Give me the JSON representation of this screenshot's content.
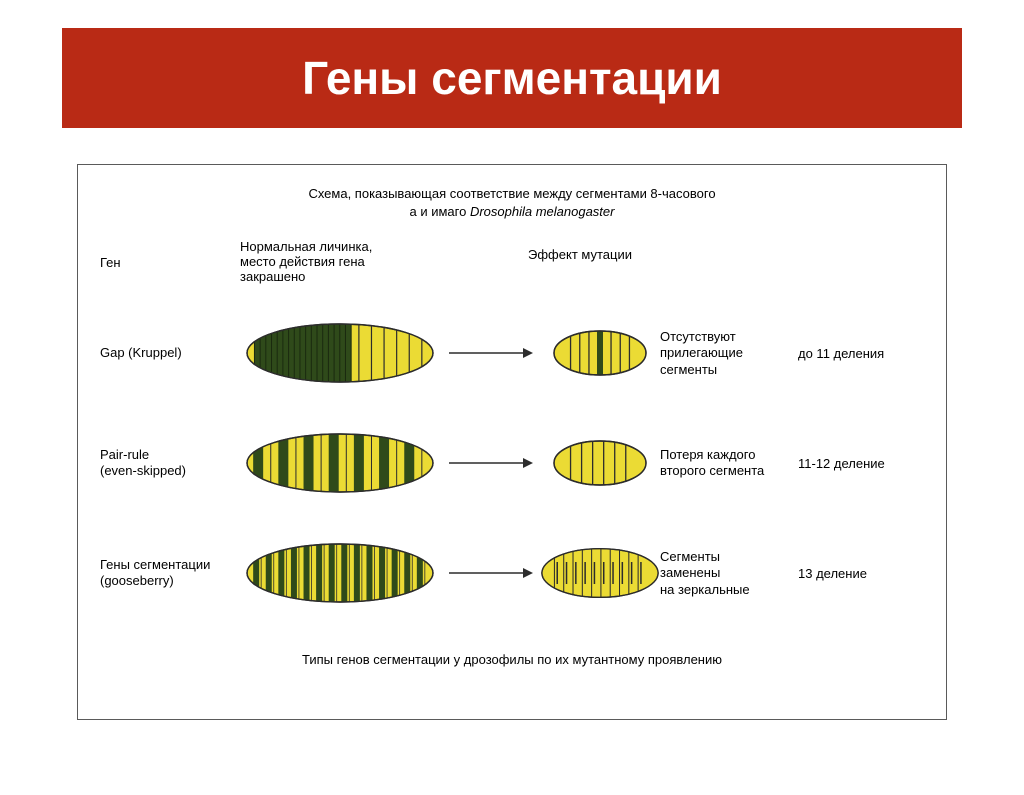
{
  "title": "Гены сегментации",
  "title_bg": "#b92a15",
  "title_fg": "#ffffff",
  "title_border": "#b92a15",
  "frame_border": "#5a5a5a",
  "caption_top_l1": "Схема, показывающая соответствие между сегментами 8-часового",
  "caption_top_l2_a": "а и имаго ",
  "caption_top_l2_b": "Drosophila melanogaster",
  "caption_bottom": "Типы генов сегментации у дрозофилы по их мутантному проявлению",
  "header_gene": "Ген",
  "header_normal_l1": "Нормальная личинка,",
  "header_normal_l2": "место действия гена",
  "header_normal_l3": "закрашено",
  "header_effect": "Эффект мутации",
  "larva_fill": "#ebdb34",
  "larva_dark": "#2f4a1a",
  "larva_stroke": "#2c2c2c",
  "arrow_stroke": "#2c2c2c",
  "rows": [
    {
      "gene_l1": "Gap (Kruppel)",
      "gene_l2": "",
      "effect_l1": "Отсутствуют",
      "effect_l2": "прилегающие",
      "effect_l3": "сегменты",
      "deletion": "до 11 деления",
      "big": {
        "type": "gap",
        "width": 190,
        "height": 62,
        "dark_start": 0.04,
        "dark_end": 0.56,
        "stripes": 14
      },
      "small": {
        "width": 96,
        "height": 48,
        "stripes": [
          0.18,
          0.28,
          0.38,
          0.5,
          0.62,
          0.72,
          0.82
        ],
        "dark_stripes": [
          0.5
        ]
      }
    },
    {
      "gene_l1": "Pair-rule",
      "gene_l2": "(even-skipped)",
      "effect_l1": "Потеря каждого",
      "effect_l2": "второго сегмента",
      "effect_l3": "",
      "deletion": "11-12 деление",
      "big": {
        "type": "pairrule",
        "width": 190,
        "height": 62,
        "stripes": 14,
        "pair_dark": true
      },
      "small": {
        "width": 96,
        "height": 48,
        "stripes": [
          0.18,
          0.3,
          0.42,
          0.54,
          0.66,
          0.78
        ],
        "dark_stripes": []
      }
    },
    {
      "gene_l1": "Гены сегментации",
      "gene_l2": "(gooseberry)",
      "effect_l1": "Сегменты",
      "effect_l2": "заменены",
      "effect_l3": "на зеркальные",
      "deletion": "13 деление",
      "big": {
        "type": "polarity",
        "width": 190,
        "height": 62,
        "stripes": 14
      },
      "small": {
        "width": 128,
        "height": 56,
        "stripes": [
          0.12,
          0.2,
          0.28,
          0.36,
          0.44,
          0.52,
          0.6,
          0.68,
          0.76,
          0.84
        ],
        "dark_stripes": [],
        "double": true
      }
    }
  ]
}
